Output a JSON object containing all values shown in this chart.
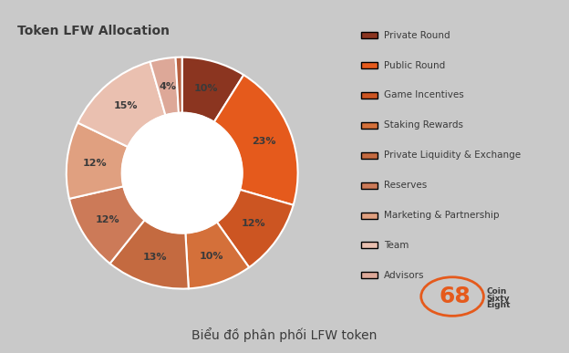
{
  "title": "Token LFW Allocation",
  "subtitle": "Biểu đồ phân phối LFW token",
  "segments": [
    {
      "label": "Private Round",
      "value": 10,
      "color": "#8B3520"
    },
    {
      "label": "Public Round",
      "value": 23,
      "color": "#E55A1C"
    },
    {
      "label": "Game Incentives",
      "value": 12,
      "color": "#CC5522"
    },
    {
      "label": "Staking Rewards",
      "value": 10,
      "color": "#D4703A"
    },
    {
      "label": "Private Liquidity & Exchange",
      "value": 13,
      "color": "#C46A40"
    },
    {
      "label": "Reserves",
      "value": 12,
      "color": "#CC7A58"
    },
    {
      "label": "Marketing & Partnership",
      "value": 12,
      "color": "#E0A080"
    },
    {
      "label": "Team",
      "value": 15,
      "color": "#EAC0B0"
    },
    {
      "label": "Advisors",
      "value": 4,
      "color": "#DDA898"
    },
    {
      "label": "",
      "value": 1,
      "color": "#B86040"
    }
  ],
  "background_color": "#C9C9C9",
  "title_fontsize": 10,
  "label_fontsize": 8,
  "legend_fontsize": 7.5,
  "subtitle_fontsize": 10,
  "donut_width": 0.48,
  "edge_color": "white",
  "edge_linewidth": 1.5
}
